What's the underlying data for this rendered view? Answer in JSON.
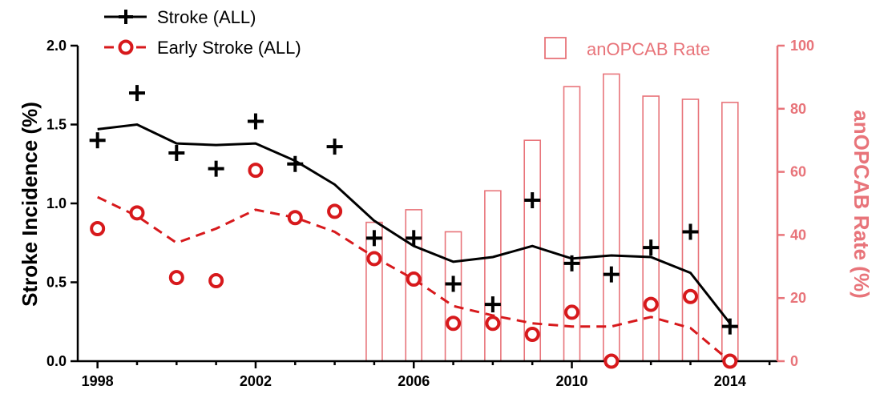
{
  "chart_data": {
    "type": "bar+line+scatter",
    "x_ticks": [
      "1998",
      "2002",
      "2006",
      "2010",
      "2014"
    ],
    "xlim": [
      1997.5,
      2015.2
    ],
    "left_axis": {
      "title": "Stroke Incidence (%)",
      "range": [
        0,
        2.0
      ],
      "ticks": [
        "0.0",
        "0.5",
        "1.0",
        "1.5",
        "2.0"
      ]
    },
    "right_axis": {
      "title": "anOPCAB Rate (%)",
      "range": [
        0,
        100
      ],
      "ticks": [
        "0",
        "20",
        "40",
        "60",
        "80",
        "100"
      ],
      "color": "#e8747a"
    },
    "legend": [
      {
        "name": "Stroke (ALL)",
        "marker": "plus",
        "line": "solid",
        "color": "#000000"
      },
      {
        "name": "Early Stroke (ALL)",
        "marker": "circle",
        "line": "dashed",
        "color": "#d7191c"
      },
      {
        "name": "anOPCAB Rate",
        "marker": "open-bar",
        "color": "#e8747a"
      }
    ],
    "stroke_all_points": {
      "x": [
        1998,
        1999,
        2000,
        2001,
        2002,
        2003,
        2004,
        2005,
        2006,
        2007,
        2008,
        2009,
        2010,
        2011,
        2012,
        2013,
        2014
      ],
      "y": [
        1.4,
        1.7,
        1.32,
        1.22,
        1.52,
        1.25,
        1.36,
        0.78,
        0.78,
        0.49,
        0.36,
        1.02,
        0.62,
        0.55,
        0.72,
        0.82,
        0.22
      ]
    },
    "stroke_all_trend": {
      "x": [
        1998,
        1999,
        2000,
        2001,
        2002,
        2003,
        2004,
        2005,
        2006,
        2007,
        2008,
        2009,
        2010,
        2011,
        2012,
        2013,
        2014
      ],
      "y": [
        1.47,
        1.5,
        1.38,
        1.37,
        1.38,
        1.27,
        1.12,
        0.89,
        0.73,
        0.63,
        0.66,
        0.73,
        0.65,
        0.67,
        0.66,
        0.56,
        0.24
      ]
    },
    "early_stroke_points": {
      "x": [
        1998,
        1999,
        2000,
        2001,
        2002,
        2003,
        2004,
        2005,
        2006,
        2007,
        2008,
        2009,
        2010,
        2011,
        2012,
        2013,
        2014
      ],
      "y": [
        0.84,
        0.94,
        0.53,
        0.51,
        1.21,
        0.91,
        0.95,
        0.65,
        0.52,
        0.24,
        0.24,
        0.17,
        0.31,
        0.0,
        0.36,
        0.41,
        0.0
      ]
    },
    "early_stroke_trend": {
      "x": [
        1998,
        1999,
        2000,
        2001,
        2002,
        2003,
        2004,
        2005,
        2006,
        2007,
        2008,
        2009,
        2010,
        2011,
        2012,
        2013,
        2014
      ],
      "y": [
        1.04,
        0.92,
        0.75,
        0.84,
        0.96,
        0.91,
        0.82,
        0.66,
        0.52,
        0.35,
        0.29,
        0.24,
        0.22,
        0.22,
        0.28,
        0.21,
        0.0
      ]
    },
    "anopcab_rate": {
      "x": [
        2005,
        2006,
        2007,
        2008,
        2009,
        2010,
        2011,
        2012,
        2013,
        2014
      ],
      "y": [
        44,
        48,
        41,
        54,
        70,
        87,
        91,
        84,
        83,
        82
      ]
    }
  }
}
